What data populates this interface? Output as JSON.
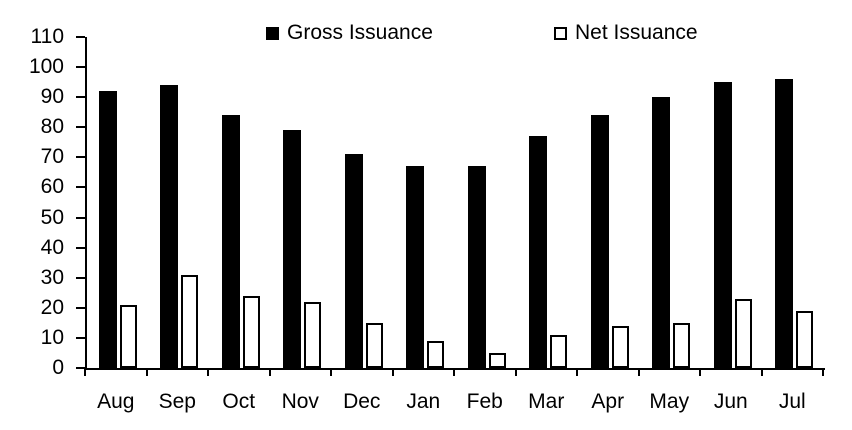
{
  "chart_data": {
    "type": "bar",
    "title": "",
    "categories": [
      "Aug",
      "Sep",
      "Oct",
      "Nov",
      "Dec",
      "Jan",
      "Feb",
      "Mar",
      "Apr",
      "May",
      "Jun",
      "Jul"
    ],
    "series": [
      {
        "name": "Gross Issuance",
        "values": [
          92,
          94,
          84,
          79,
          71,
          67,
          67,
          77,
          84,
          90,
          95,
          96
        ]
      },
      {
        "name": "Net Issuance",
        "values": [
          21,
          31,
          24,
          22,
          15,
          9,
          5,
          11,
          14,
          15,
          23,
          19
        ]
      }
    ],
    "xlabel": "",
    "ylabel": "",
    "ylim": [
      0,
      110
    ],
    "ytick_step": 10,
    "yticks": [
      0,
      10,
      20,
      30,
      40,
      50,
      60,
      70,
      80,
      90,
      100,
      110
    ],
    "grid": false,
    "legend_position": "top"
  },
  "legend": {
    "gross_label": "Gross Issuance",
    "net_label": "Net Issuance"
  },
  "colors": {
    "gross_fill": "#000000",
    "net_fill": "#ffffff",
    "net_border": "#000000",
    "axis": "#000000",
    "text": "#000000",
    "background": "#ffffff"
  }
}
